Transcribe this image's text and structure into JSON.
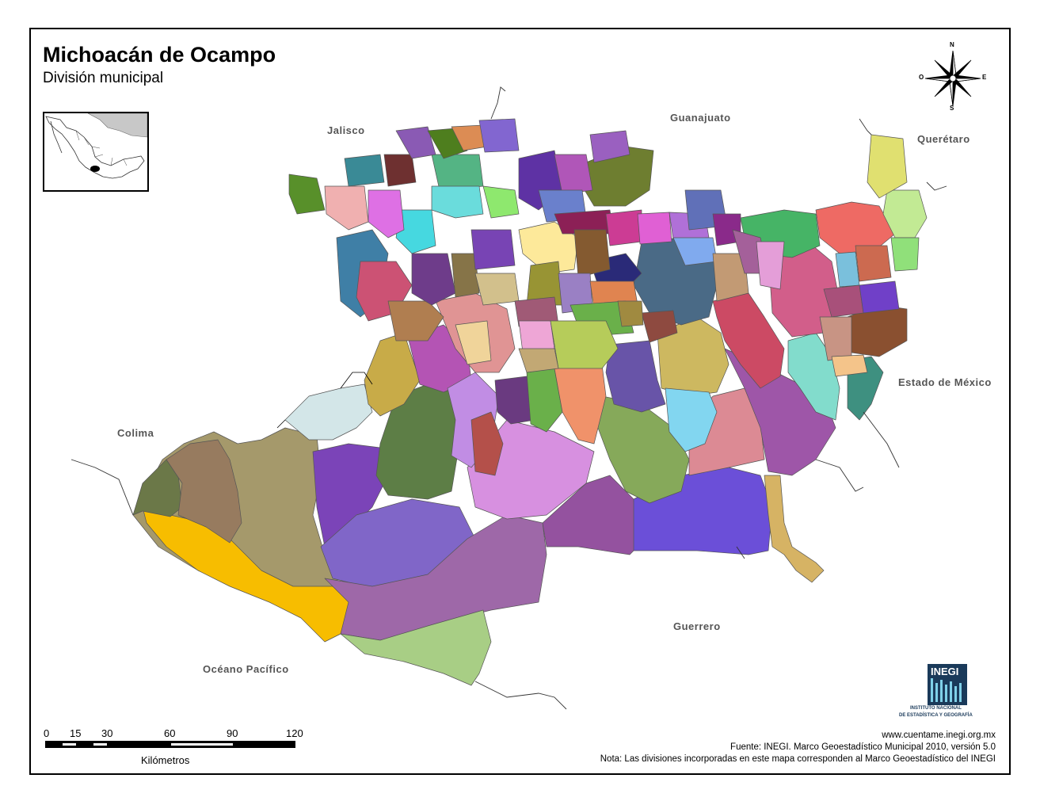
{
  "title": "Michoacán de Ocampo",
  "subtitle": "División municipal",
  "neighbors": {
    "jalisco": "Jalisco",
    "guanajuato": "Guanajuato",
    "queretaro": "Querétaro",
    "edomex": "Estado de México",
    "colima": "Colima",
    "guerrero": "Guerrero",
    "ocean": "Océano Pacífico"
  },
  "compass": {
    "n": "N",
    "s": "S",
    "e": "E",
    "w": "O"
  },
  "scale": {
    "ticks": [
      "0",
      "15",
      "30",
      "60",
      "90",
      "120"
    ],
    "unit": "Kilómetros"
  },
  "footer": {
    "url": "www.cuentame.inegi.org.mx",
    "source": "Fuente: INEGI. Marco Geoestadístico Municipal 2010, versión 5.0",
    "note": "Nota: Las divisiones incorporadas en este mapa corresponden al Marco Geoestadístico del INEGI"
  },
  "logo": {
    "acronym": "INEGI",
    "line1": "INSTITUTO NACIONAL",
    "line2": "DE ESTADÍSTICA Y GEOGRAFÍA"
  },
  "colors": {
    "state_yellow": "#f7bd00",
    "border": "#555555"
  }
}
